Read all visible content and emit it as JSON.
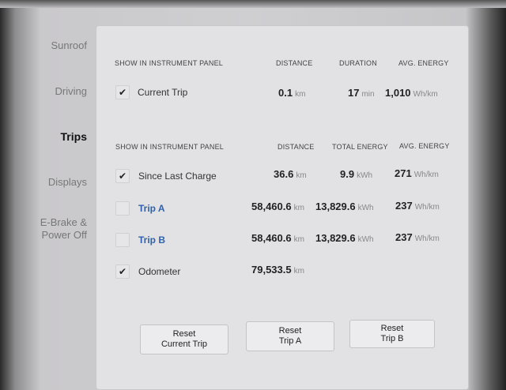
{
  "sidebar": {
    "items": [
      {
        "label": "Sunroof"
      },
      {
        "label": "Driving"
      },
      {
        "label": "Trips",
        "active": true
      },
      {
        "label": "Displays"
      },
      {
        "label": "E-Brake &",
        "label2": "Power Off"
      }
    ]
  },
  "current": {
    "headers": [
      "SHOW IN INSTRUMENT PANEL",
      "DISTANCE",
      "DURATION",
      "AVG. ENERGY"
    ],
    "row": {
      "name": "Current Trip",
      "checked": true,
      "distance": "0.1",
      "distance_unit": "km",
      "duration": "17",
      "duration_unit": "min",
      "avg": "1,010",
      "avg_unit": "Wh/km"
    }
  },
  "totals": {
    "headers": [
      "SHOW IN INSTRUMENT PANEL",
      "DISTANCE",
      "TOTAL ENERGY",
      "AVG. ENERGY"
    ],
    "rows": [
      {
        "name": "Since Last Charge",
        "checked": true,
        "distance": "36.6",
        "distance_unit": "km",
        "energy": "9.9",
        "energy_unit": "kWh",
        "avg": "271",
        "avg_unit": "Wh/km"
      },
      {
        "name": "Trip A",
        "checked": false,
        "distance": "58,460.6",
        "distance_unit": "km",
        "energy": "13,829.6",
        "energy_unit": "kWh",
        "avg": "237",
        "avg_unit": "Wh/km"
      },
      {
        "name": "Trip B",
        "checked": false,
        "distance": "58,460.6",
        "distance_unit": "km",
        "energy": "13,829.6",
        "energy_unit": "kWh",
        "avg": "237",
        "avg_unit": "Wh/km"
      },
      {
        "name": "Odometer",
        "checked": true,
        "distance": "79,533.5",
        "distance_unit": "km"
      }
    ]
  },
  "buttons": [
    {
      "line1": "Reset",
      "line2": "Current Trip"
    },
    {
      "line1": "Reset",
      "line2": "Trip A"
    },
    {
      "line1": "Reset",
      "line2": "Trip B"
    }
  ],
  "colors": {
    "link": "#2e62b0"
  },
  "icons": {
    "check": "checkmark-icon"
  }
}
